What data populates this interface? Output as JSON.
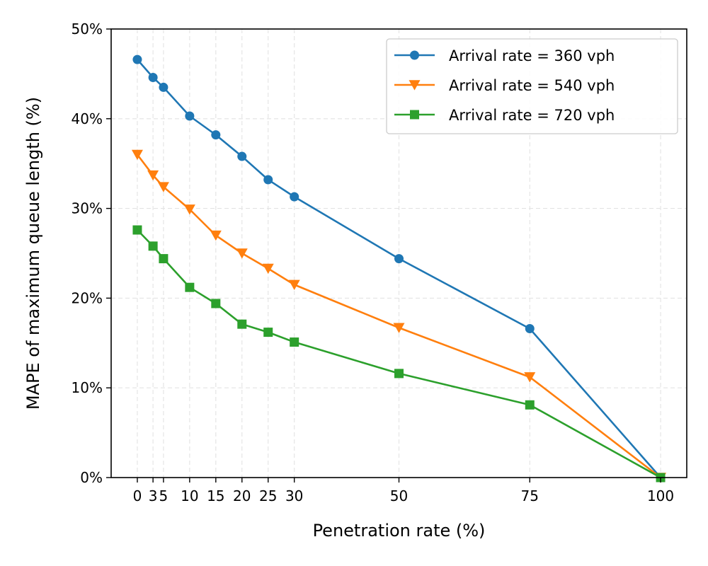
{
  "chart_data": {
    "type": "line",
    "title": "",
    "xlabel": "Penetration rate (%)",
    "ylabel": "MAPE of maximum queue length (%)",
    "x": [
      0,
      3,
      5,
      10,
      15,
      20,
      25,
      30,
      50,
      75,
      100
    ],
    "x_tick_labels": [
      "0",
      "3",
      "5",
      "10",
      "15",
      "20",
      "25",
      "30",
      "50",
      "75",
      "100"
    ],
    "xlim": [
      -5,
      105
    ],
    "ylim": [
      0,
      50
    ],
    "y_ticks": [
      0,
      10,
      20,
      30,
      40,
      50
    ],
    "y_tick_labels": [
      "0%",
      "10%",
      "20%",
      "30%",
      "40%",
      "50%"
    ],
    "grid": true,
    "legend_position": "top-right",
    "series": [
      {
        "name": "Arrival rate = 360 vph",
        "color": "#1f77b4",
        "marker": "circle",
        "values": [
          46.6,
          44.6,
          43.5,
          40.3,
          38.2,
          35.8,
          33.2,
          31.3,
          24.4,
          16.6,
          0.0
        ]
      },
      {
        "name": "Arrival rate = 540 vph",
        "color": "#ff7f0e",
        "marker": "triangle-down",
        "values": [
          36.0,
          33.7,
          32.4,
          29.9,
          27.0,
          25.0,
          23.3,
          21.5,
          16.7,
          11.2,
          0.0
        ]
      },
      {
        "name": "Arrival rate = 720 vph",
        "color": "#2ca02c",
        "marker": "square",
        "values": [
          27.6,
          25.8,
          24.4,
          21.2,
          19.4,
          17.1,
          16.2,
          15.1,
          11.6,
          8.1,
          0.0
        ]
      }
    ]
  }
}
